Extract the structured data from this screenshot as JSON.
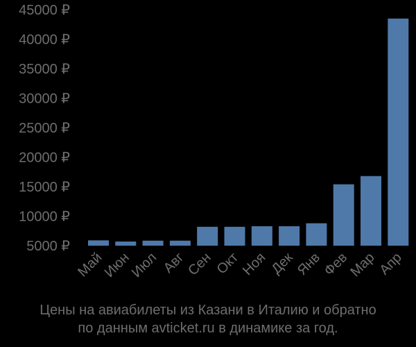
{
  "chart_data": {
    "type": "bar",
    "title": "Цены на авиабилеты из Казани в Италию и обратно по данным avticket.ru в динамике за год.",
    "xlabel": "",
    "ylabel": "",
    "categories": [
      "Май",
      "Июн",
      "Июл",
      "Авг",
      "Сен",
      "Окт",
      "Ноя",
      "Дек",
      "Янв",
      "Фев",
      "Мар",
      "Апр"
    ],
    "values": [
      5900,
      5700,
      5850,
      5850,
      8200,
      8200,
      8300,
      8300,
      8800,
      15400,
      16800,
      43500
    ],
    "ylim": [
      5000,
      45000
    ],
    "yticks": [
      5000,
      10000,
      15000,
      20000,
      25000,
      30000,
      35000,
      40000,
      45000
    ],
    "ytick_labels": [
      "5000 ₽",
      "10000 ₽",
      "15000 ₽",
      "20000 ₽",
      "25000 ₽",
      "30000 ₽",
      "35000 ₽",
      "40000 ₽",
      "45000 ₽"
    ],
    "grid": false,
    "legend": null,
    "bar_color": "#4f79a8"
  },
  "caption": {
    "line1": "Цены на авиабилеты из Казани в Италию и обратно",
    "line2": "по данным avticket.ru в динамике за год."
  }
}
